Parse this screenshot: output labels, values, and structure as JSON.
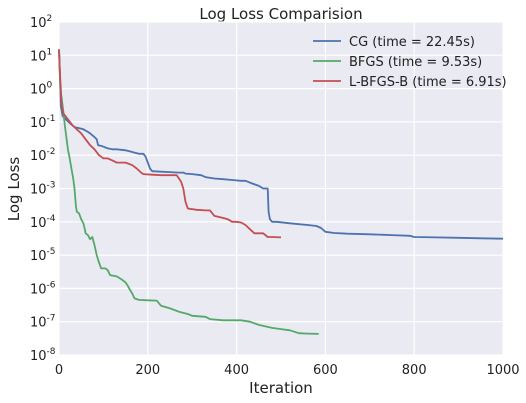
{
  "chart_data": {
    "type": "line",
    "title": "Log Loss Comparision",
    "xlabel": "Iteration",
    "ylabel": "Log Loss",
    "xlim": [
      0,
      1000
    ],
    "ylim": [
      1e-08,
      100
    ],
    "yscale": "log",
    "xticks": [
      "0",
      "200",
      "400",
      "600",
      "800",
      "1000"
    ],
    "yticks": [
      {
        "base": "10",
        "exp": "-8"
      },
      {
        "base": "10",
        "exp": "-7"
      },
      {
        "base": "10",
        "exp": "-6"
      },
      {
        "base": "10",
        "exp": "-5"
      },
      {
        "base": "10",
        "exp": "-4"
      },
      {
        "base": "10",
        "exp": "-3"
      },
      {
        "base": "10",
        "exp": "-2"
      },
      {
        "base": "10",
        "exp": "-1"
      },
      {
        "base": "10",
        "exp": "0"
      },
      {
        "base": "10",
        "exp": "1"
      },
      {
        "base": "10",
        "exp": "2"
      }
    ],
    "grid": true,
    "legend_position": "top-right",
    "background": "#eaeaf2",
    "series": [
      {
        "name": "CG (time = 22.45s)",
        "color": "#4c72b0",
        "points": [
          [
            0,
            15
          ],
          [
            2,
            3
          ],
          [
            4,
            0.3
          ],
          [
            8,
            0.15
          ],
          [
            15,
            0.12
          ],
          [
            25,
            0.09
          ],
          [
            35,
            0.07
          ],
          [
            45,
            0.065
          ],
          [
            55,
            0.06
          ],
          [
            65,
            0.05
          ],
          [
            70,
            0.045
          ],
          [
            75,
            0.04
          ],
          [
            80,
            0.035
          ],
          [
            85,
            0.03
          ],
          [
            88,
            0.02
          ],
          [
            95,
            0.019
          ],
          [
            100,
            0.018
          ],
          [
            105,
            0.017
          ],
          [
            110,
            0.016
          ],
          [
            120,
            0.015
          ],
          [
            130,
            0.015
          ],
          [
            140,
            0.0145
          ],
          [
            150,
            0.014
          ],
          [
            160,
            0.013
          ],
          [
            170,
            0.012
          ],
          [
            180,
            0.011
          ],
          [
            190,
            0.011
          ],
          [
            195,
            0.009
          ],
          [
            200,
            0.006
          ],
          [
            205,
            0.004
          ],
          [
            210,
            0.0033
          ],
          [
            230,
            0.0032
          ],
          [
            250,
            0.0031
          ],
          [
            270,
            0.003
          ],
          [
            280,
            0.003
          ],
          [
            285,
            0.0028
          ],
          [
            300,
            0.0027
          ],
          [
            320,
            0.0025
          ],
          [
            330,
            0.0022
          ],
          [
            350,
            0.002
          ],
          [
            370,
            0.0019
          ],
          [
            390,
            0.0018
          ],
          [
            410,
            0.0017
          ],
          [
            420,
            0.0017
          ],
          [
            430,
            0.0015
          ],
          [
            450,
            0.0012
          ],
          [
            460,
            0.001
          ],
          [
            470,
            0.001
          ],
          [
            472,
            0.0002
          ],
          [
            475,
            0.00012
          ],
          [
            480,
            0.0001
          ],
          [
            490,
            0.0001
          ],
          [
            520,
            9e-05
          ],
          [
            560,
            8e-05
          ],
          [
            580,
            7.5e-05
          ],
          [
            590,
            6.5e-05
          ],
          [
            600,
            5e-05
          ],
          [
            620,
            4.6e-05
          ],
          [
            650,
            4.4e-05
          ],
          [
            700,
            4.2e-05
          ],
          [
            750,
            4e-05
          ],
          [
            790,
            3.8e-05
          ],
          [
            800,
            3.5e-05
          ],
          [
            850,
            3.4e-05
          ],
          [
            900,
            3.3e-05
          ],
          [
            950,
            3.2e-05
          ],
          [
            1000,
            3.1e-05
          ]
        ]
      },
      {
        "name": "BFGS (time = 9.53s)",
        "color": "#55a868",
        "points": [
          [
            0,
            15
          ],
          [
            3,
            1
          ],
          [
            6,
            0.5
          ],
          [
            10,
            0.2
          ],
          [
            13,
            0.08
          ],
          [
            16,
            0.04
          ],
          [
            20,
            0.015
          ],
          [
            24,
            0.008
          ],
          [
            28,
            0.004
          ],
          [
            32,
            0.002
          ],
          [
            35,
            0.001
          ],
          [
            38,
            0.0003
          ],
          [
            40,
            0.0002
          ],
          [
            45,
            0.00018
          ],
          [
            50,
            0.00012
          ],
          [
            55,
            9e-05
          ],
          [
            58,
            6e-05
          ],
          [
            60,
            4.5e-05
          ],
          [
            65,
            4e-05
          ],
          [
            70,
            3e-05
          ],
          [
            75,
            3.5e-05
          ],
          [
            80,
            2e-05
          ],
          [
            85,
            1e-05
          ],
          [
            90,
            6e-06
          ],
          [
            95,
            4e-06
          ],
          [
            100,
            4e-06
          ],
          [
            105,
            4e-06
          ],
          [
            110,
            3.5e-06
          ],
          [
            115,
            2.5e-06
          ],
          [
            130,
            2.3e-06
          ],
          [
            140,
            1.9e-06
          ],
          [
            150,
            1.5e-06
          ],
          [
            155,
            1.2e-06
          ],
          [
            160,
            9e-07
          ],
          [
            165,
            7e-07
          ],
          [
            170,
            5e-07
          ],
          [
            180,
            4.5e-07
          ],
          [
            200,
            4.4e-07
          ],
          [
            220,
            4.3e-07
          ],
          [
            230,
            3e-07
          ],
          [
            250,
            2.5e-07
          ],
          [
            270,
            2e-07
          ],
          [
            290,
            1.7e-07
          ],
          [
            300,
            1.5e-07
          ],
          [
            330,
            1.4e-07
          ],
          [
            340,
            1.2e-07
          ],
          [
            370,
            1.1e-07
          ],
          [
            410,
            1.1e-07
          ],
          [
            430,
            1e-07
          ],
          [
            450,
            8e-08
          ],
          [
            480,
            6.5e-08
          ],
          [
            500,
            6e-08
          ],
          [
            520,
            5.5e-08
          ],
          [
            540,
            4.5e-08
          ],
          [
            560,
            4.4e-08
          ],
          [
            585,
            4.3e-08
          ]
        ]
      },
      {
        "name": "L-BFGS-B (time = 6.91s)",
        "color": "#c44e52",
        "points": [
          [
            0,
            15
          ],
          [
            2,
            3
          ],
          [
            4,
            1
          ],
          [
            6,
            0.3
          ],
          [
            10,
            0.18
          ],
          [
            20,
            0.12
          ],
          [
            30,
            0.08
          ],
          [
            40,
            0.06
          ],
          [
            50,
            0.045
          ],
          [
            60,
            0.03
          ],
          [
            70,
            0.02
          ],
          [
            80,
            0.015
          ],
          [
            90,
            0.01
          ],
          [
            100,
            0.008
          ],
          [
            110,
            0.008
          ],
          [
            120,
            0.007
          ],
          [
            130,
            0.006
          ],
          [
            150,
            0.006
          ],
          [
            165,
            0.005
          ],
          [
            175,
            0.004
          ],
          [
            185,
            0.003
          ],
          [
            190,
            0.0027
          ],
          [
            210,
            0.0026
          ],
          [
            230,
            0.0025
          ],
          [
            250,
            0.0025
          ],
          [
            265,
            0.0025
          ],
          [
            275,
            0.0016
          ],
          [
            280,
            0.001
          ],
          [
            285,
            0.0004
          ],
          [
            290,
            0.00025
          ],
          [
            310,
            0.00023
          ],
          [
            330,
            0.00022
          ],
          [
            340,
            0.00022
          ],
          [
            350,
            0.00015
          ],
          [
            370,
            0.00013
          ],
          [
            380,
            0.00012
          ],
          [
            390,
            0.0001
          ],
          [
            400,
            0.0001
          ],
          [
            410,
            9.5e-05
          ],
          [
            420,
            8e-05
          ],
          [
            430,
            6e-05
          ],
          [
            440,
            4.5e-05
          ],
          [
            450,
            4.5e-05
          ],
          [
            460,
            4.5e-05
          ],
          [
            470,
            3.5e-05
          ],
          [
            480,
            3.5e-05
          ],
          [
            500,
            3.4e-05
          ]
        ]
      }
    ]
  }
}
